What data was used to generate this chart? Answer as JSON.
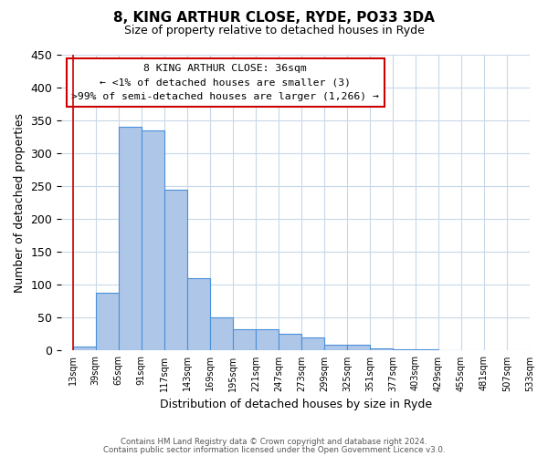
{
  "title": "8, KING ARTHUR CLOSE, RYDE, PO33 3DA",
  "subtitle": "Size of property relative to detached houses in Ryde",
  "xlabel": "Distribution of detached houses by size in Ryde",
  "ylabel": "Number of detached properties",
  "bar_values": [
    6,
    88,
    340,
    335,
    245,
    110,
    50,
    32,
    32,
    25,
    20,
    9,
    9,
    4,
    2,
    2,
    1
  ],
  "bin_labels": [
    "13sqm",
    "39sqm",
    "65sqm",
    "91sqm",
    "117sqm",
    "143sqm",
    "169sqm",
    "195sqm",
    "221sqm",
    "247sqm",
    "273sqm",
    "299sqm",
    "325sqm",
    "351sqm",
    "377sqm",
    "403sqm",
    "429sqm",
    "455sqm",
    "481sqm",
    "507sqm",
    "533sqm"
  ],
  "bar_color": "#aec6e8",
  "bar_edge_color": "#4a90d9",
  "ylim": [
    0,
    450
  ],
  "yticks": [
    0,
    50,
    100,
    150,
    200,
    250,
    300,
    350,
    400,
    450
  ],
  "annotation_box_text": "8 KING ARTHUR CLOSE: 36sqm\n← <1% of detached houses are smaller (3)\n>99% of semi-detached houses are larger (1,266) →",
  "annotation_box_color": "#ffffff",
  "annotation_box_edge_color": "#cc0000",
  "marker_line_color": "#cc0000",
  "footer_line1": "Contains HM Land Registry data © Crown copyright and database right 2024.",
  "footer_line2": "Contains public sector information licensed under the Open Government Licence v3.0.",
  "background_color": "#ffffff",
  "grid_color": "#c8d8e8"
}
